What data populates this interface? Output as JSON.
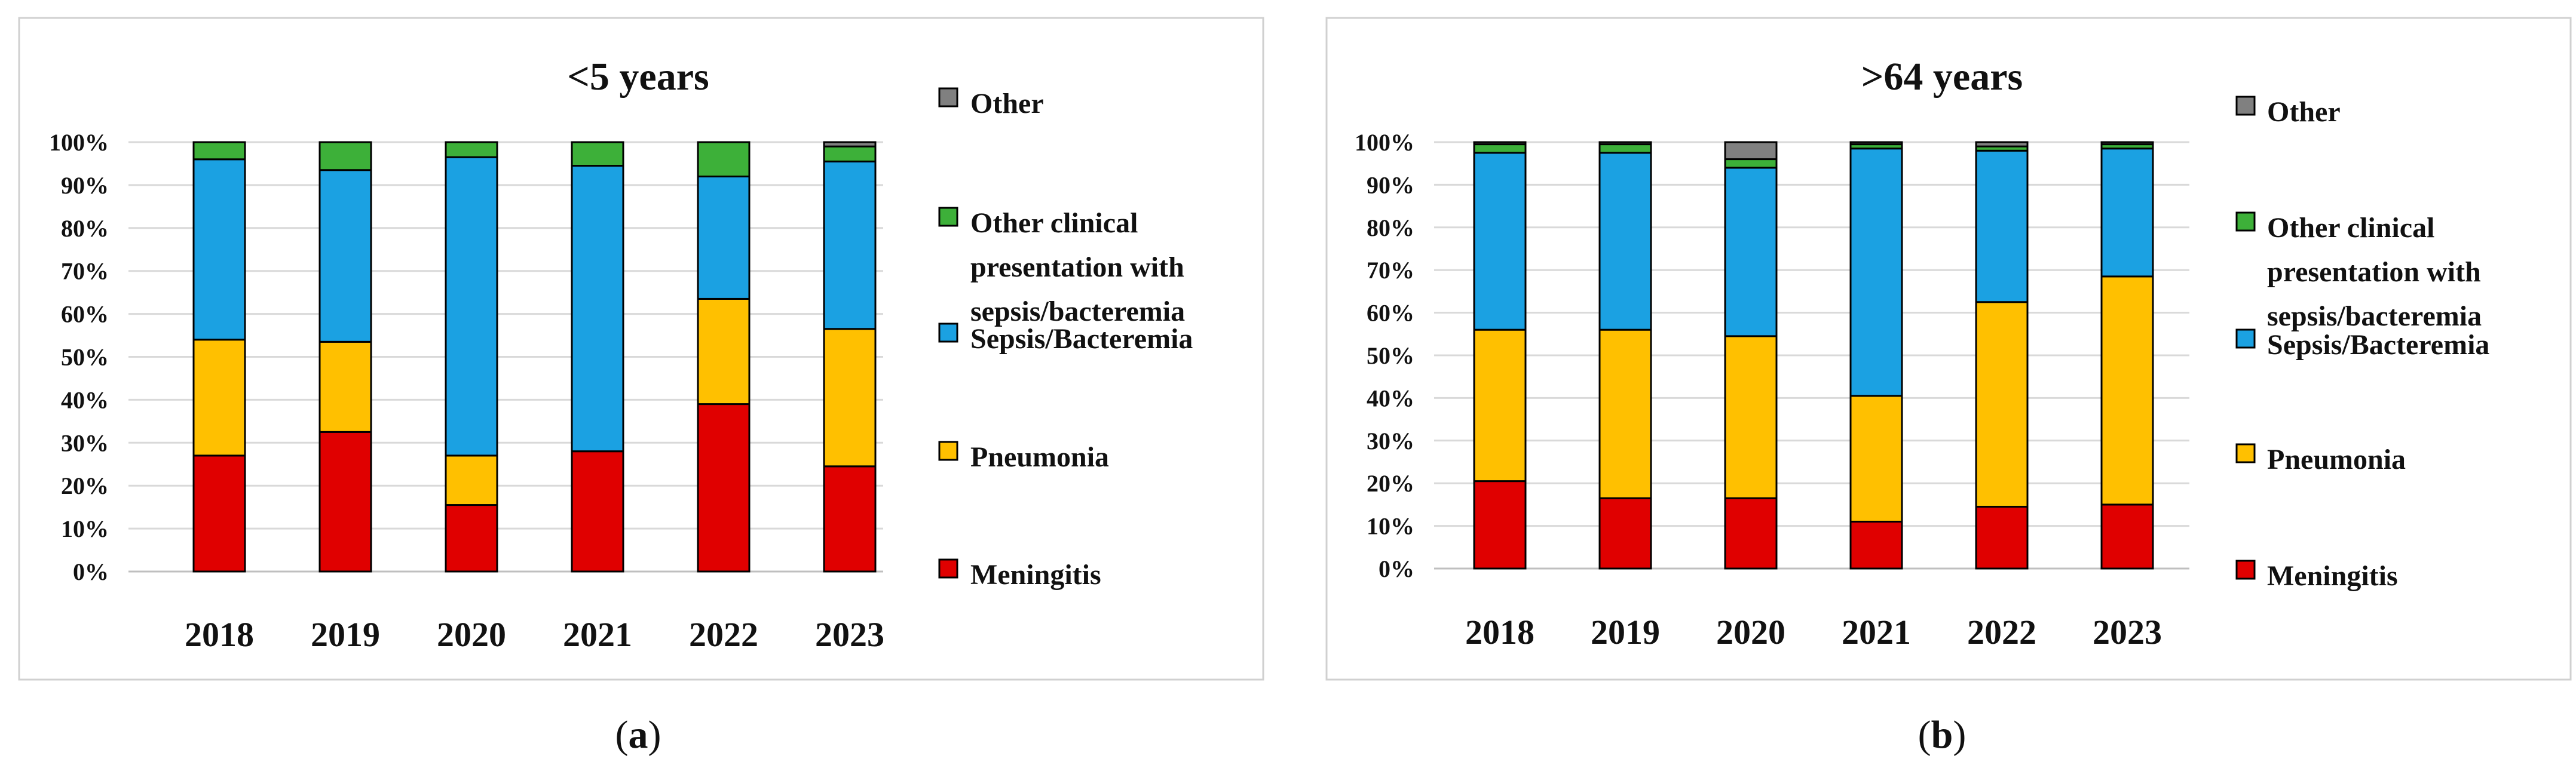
{
  "chart_data": [
    {
      "type": "bar",
      "stacked": true,
      "title": "<5 years",
      "panel_label": "a",
      "categories": [
        "2018",
        "2019",
        "2020",
        "2021",
        "2022",
        "2023"
      ],
      "y_ticks": [
        "0%",
        "10%",
        "20%",
        "30%",
        "40%",
        "50%",
        "60%",
        "70%",
        "80%",
        "90%",
        "100%"
      ],
      "ylim": [
        0,
        100
      ],
      "legend_position": "right",
      "series": [
        {
          "name": "Meningitis",
          "color": "#E00000",
          "values": [
            27,
            32.5,
            15.5,
            28,
            39,
            24.5
          ]
        },
        {
          "name": "Pneumonia",
          "color": "#FFC000",
          "values": [
            27,
            21,
            11.5,
            0,
            24.5,
            32
          ]
        },
        {
          "name": "Sepsis/Bacteremia",
          "color": "#1BA1E2",
          "values": [
            42,
            40,
            69.5,
            66.5,
            28.5,
            39
          ]
        },
        {
          "name": "Other clinical presentation with sepsis/bacteremia",
          "color": "#3DB039",
          "values": [
            4,
            6.5,
            3.5,
            5.5,
            8,
            3.5
          ]
        },
        {
          "name": "Other",
          "color": "#808080",
          "values": [
            0,
            0,
            0,
            0,
            0,
            1
          ]
        }
      ]
    },
    {
      "type": "bar",
      "stacked": true,
      "title": ">64 years",
      "panel_label": "b",
      "categories": [
        "2018",
        "2019",
        "2020",
        "2021",
        "2022",
        "2023"
      ],
      "y_ticks": [
        "0%",
        "10%",
        "20%",
        "30%",
        "40%",
        "50%",
        "60%",
        "70%",
        "80%",
        "90%",
        "100%"
      ],
      "ylim": [
        0,
        100
      ],
      "legend_position": "right",
      "series": [
        {
          "name": "Meningitis",
          "color": "#E00000",
          "values": [
            20.5,
            16.5,
            16.5,
            11,
            14.5,
            15
          ]
        },
        {
          "name": "Pneumonia",
          "color": "#FFC000",
          "values": [
            35.5,
            39.5,
            38,
            29.5,
            48,
            53.5
          ]
        },
        {
          "name": "Sepsis/Bacteremia",
          "color": "#1BA1E2",
          "values": [
            41.5,
            41.5,
            39.5,
            58,
            35.5,
            30
          ]
        },
        {
          "name": "Other clinical presentation with sepsis/bacteremia",
          "color": "#3DB039",
          "values": [
            2,
            2,
            2,
            1,
            1,
            1
          ]
        },
        {
          "name": "Other",
          "color": "#808080",
          "values": [
            0.5,
            0.5,
            4,
            0.5,
            1,
            0.5
          ]
        }
      ]
    }
  ]
}
